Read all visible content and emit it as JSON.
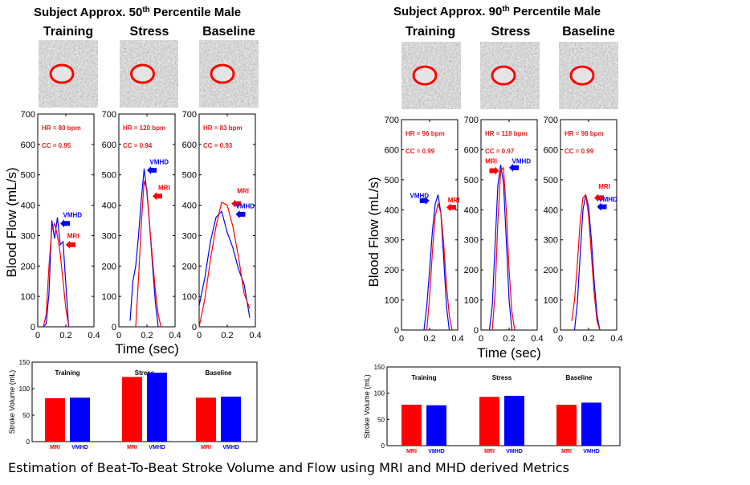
{
  "caption": "Estimation of Beat-To-Beat Stroke Volume and Flow using MRI and MHD derived Metrics",
  "colors": {
    "mri": "#ff0000",
    "vmhd": "#0000ff",
    "label_red": "#e02020",
    "axis": "#000000"
  },
  "groups": [
    {
      "title": "Subject Approx. 50",
      "title_sup": "th",
      "title_tail": " Percentile Male",
      "columns": [
        "Training",
        "Stress",
        "Baseline"
      ],
      "flow_ylabel": "Blood Flow (mL/s)",
      "flow_xlabel": "Time (sec)",
      "bar_ylabel": "Stroke Volume (mL)"
    },
    {
      "title": "Subject Approx. 90",
      "title_sup": "th",
      "title_tail": " Percentile Male",
      "columns": [
        "Training",
        "Stress",
        "Baseline"
      ],
      "flow_ylabel": "Blood Flow (mL/s)",
      "flow_xlabel": "Time (sec)",
      "bar_ylabel": "Stroke Volume (mL)"
    }
  ],
  "chart_data": [
    {
      "type": "line",
      "group": 0,
      "panel": "Training",
      "xlim": [
        0,
        0.4
      ],
      "ylim": [
        0,
        700
      ],
      "xticks": [
        0,
        0.2,
        0.4
      ],
      "yticks": [
        0,
        100,
        200,
        300,
        400,
        500,
        600,
        700
      ],
      "annotations": [
        "HR = 80 bpm",
        "CC = 0.95"
      ],
      "series": [
        {
          "name": "VMHD",
          "x": [
            0.04,
            0.06,
            0.08,
            0.1,
            0.12,
            0.14,
            0.16,
            0.18,
            0.2,
            0.22
          ],
          "values": [
            0,
            10,
            110,
            350,
            290,
            360,
            270,
            280,
            140,
            0
          ]
        },
        {
          "name": "MRI",
          "x": [
            0.04,
            0.06,
            0.08,
            0.1,
            0.12,
            0.14,
            0.16,
            0.18,
            0.2,
            0.22
          ],
          "values": [
            0,
            40,
            200,
            320,
            340,
            300,
            240,
            150,
            60,
            5
          ]
        }
      ]
    },
    {
      "type": "line",
      "group": 0,
      "panel": "Stress",
      "xlim": [
        0,
        0.4
      ],
      "ylim": [
        0,
        700
      ],
      "xticks": [
        0,
        0.2,
        0.4
      ],
      "yticks": [
        0,
        100,
        200,
        300,
        400,
        500,
        600,
        700
      ],
      "annotations": [
        "HR = 120 bpm",
        "CC = 0.94"
      ],
      "series": [
        {
          "name": "VMHD",
          "x": [
            0.08,
            0.1,
            0.12,
            0.14,
            0.16,
            0.18,
            0.2,
            0.22,
            0.24,
            0.26,
            0.28
          ],
          "values": [
            20,
            150,
            200,
            300,
            420,
            520,
            440,
            330,
            200,
            80,
            0
          ]
        },
        {
          "name": "MRI",
          "x": [
            0.12,
            0.14,
            0.16,
            0.18,
            0.2,
            0.22,
            0.24,
            0.26,
            0.28,
            0.3
          ],
          "values": [
            0,
            160,
            340,
            480,
            450,
            330,
            220,
            120,
            40,
            0
          ]
        }
      ]
    },
    {
      "type": "line",
      "group": 0,
      "panel": "Baseline",
      "xlim": [
        0,
        0.4
      ],
      "ylim": [
        0,
        700
      ],
      "xticks": [
        0,
        0.2,
        0.4
      ],
      "yticks": [
        0,
        100,
        200,
        300,
        400,
        500,
        600,
        700
      ],
      "annotations": [
        "HR = 83 bpm",
        "CC = 0.93"
      ],
      "series": [
        {
          "name": "VMHD",
          "x": [
            0.0,
            0.04,
            0.08,
            0.12,
            0.16,
            0.2,
            0.24,
            0.28,
            0.32,
            0.36
          ],
          "values": [
            70,
            160,
            280,
            360,
            380,
            310,
            260,
            190,
            140,
            30
          ]
        },
        {
          "name": "MRI",
          "x": [
            0.0,
            0.04,
            0.08,
            0.12,
            0.16,
            0.2,
            0.24,
            0.28,
            0.32,
            0.36
          ],
          "values": [
            0,
            90,
            220,
            330,
            410,
            400,
            330,
            230,
            110,
            60
          ]
        }
      ]
    },
    {
      "type": "line",
      "group": 1,
      "panel": "Training",
      "xlim": [
        0,
        0.4
      ],
      "ylim": [
        0,
        700
      ],
      "xticks": [
        0,
        0.2,
        0.4
      ],
      "yticks": [
        0,
        100,
        200,
        300,
        400,
        500,
        600,
        700
      ],
      "annotations": [
        "HR = 96 bpm",
        "CC = 0.99"
      ],
      "series": [
        {
          "name": "VMHD",
          "x": [
            0.16,
            0.18,
            0.2,
            0.22,
            0.24,
            0.26,
            0.28,
            0.3,
            0.32,
            0.34
          ],
          "values": [
            0,
            80,
            200,
            330,
            420,
            450,
            390,
            240,
            80,
            0
          ]
        },
        {
          "name": "MRI",
          "x": [
            0.18,
            0.2,
            0.22,
            0.24,
            0.26,
            0.28,
            0.3,
            0.32,
            0.34,
            0.36
          ],
          "values": [
            0,
            110,
            260,
            380,
            420,
            390,
            290,
            150,
            50,
            0
          ]
        }
      ]
    },
    {
      "type": "line",
      "group": 1,
      "panel": "Stress",
      "xlim": [
        0,
        0.4
      ],
      "ylim": [
        0,
        700
      ],
      "xticks": [
        0,
        0.2,
        0.4
      ],
      "yticks": [
        0,
        100,
        200,
        300,
        400,
        500,
        600,
        700
      ],
      "annotations": [
        "HR = 118 bpm",
        "CC = 0.97"
      ],
      "series": [
        {
          "name": "VMHD",
          "x": [
            0.06,
            0.08,
            0.1,
            0.12,
            0.14,
            0.16,
            0.18,
            0.2,
            0.22
          ],
          "values": [
            0,
            80,
            280,
            480,
            550,
            490,
            300,
            100,
            0
          ]
        },
        {
          "name": "MRI",
          "x": [
            0.08,
            0.1,
            0.12,
            0.14,
            0.16,
            0.18,
            0.2,
            0.22,
            0.24
          ],
          "values": [
            0,
            120,
            360,
            530,
            540,
            400,
            200,
            60,
            0
          ]
        }
      ]
    },
    {
      "type": "line",
      "group": 1,
      "panel": "Baseline",
      "xlim": [
        0,
        0.4
      ],
      "ylim": [
        0,
        700
      ],
      "xticks": [
        0,
        0.2,
        0.4
      ],
      "yticks": [
        0,
        100,
        200,
        300,
        400,
        500,
        600,
        700
      ],
      "annotations": [
        "HR = 98 bpm",
        "CC = 0.99"
      ],
      "series": [
        {
          "name": "VMHD",
          "x": [
            0.1,
            0.12,
            0.14,
            0.16,
            0.18,
            0.2,
            0.22,
            0.24,
            0.26,
            0.28
          ],
          "values": [
            0,
            90,
            250,
            400,
            450,
            410,
            300,
            160,
            50,
            0
          ]
        },
        {
          "name": "MRI",
          "x": [
            0.08,
            0.1,
            0.12,
            0.14,
            0.16,
            0.18,
            0.2,
            0.22,
            0.24,
            0.26,
            0.28
          ],
          "values": [
            30,
            100,
            220,
            360,
            440,
            450,
            380,
            250,
            120,
            30,
            0
          ]
        }
      ]
    },
    {
      "type": "bar",
      "group": 0,
      "ylabel": "Stroke Volume (mL)",
      "ylim": [
        0,
        150
      ],
      "yticks": [
        0,
        50,
        100,
        150
      ],
      "categories": [
        "Training",
        "Stress",
        "Baseline"
      ],
      "series": [
        {
          "name": "MRI",
          "values": [
            82,
            122,
            83
          ]
        },
        {
          "name": "VMHD",
          "values": [
            83,
            130,
            85
          ]
        }
      ]
    },
    {
      "type": "bar",
      "group": 1,
      "ylabel": "Stroke Volume (mL)",
      "ylim": [
        0,
        150
      ],
      "yticks": [
        0,
        50,
        100,
        150
      ],
      "categories": [
        "Training",
        "Stress",
        "Baseline"
      ],
      "series": [
        {
          "name": "MRI",
          "values": [
            78,
            93,
            78
          ]
        },
        {
          "name": "VMHD",
          "values": [
            77,
            95,
            82
          ]
        }
      ]
    }
  ]
}
